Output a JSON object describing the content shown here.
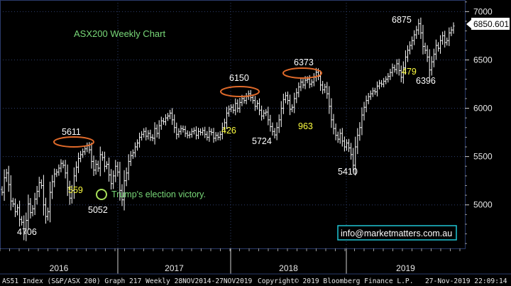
{
  "colors": {
    "background": "#000000",
    "plot_border": "#2a3a6a",
    "grid": "#2f3f6f",
    "price_bars": "#ffffff",
    "title_text": "#78d878",
    "annotation_text": "#ffff40",
    "value_text": "#ffffff",
    "highlight_ellipse": "#e06a2a",
    "event_marker": "#a8e05a",
    "link_box": "#1fc6d6",
    "last_price_box": "#ffffff"
  },
  "chart_data": {
    "type": "ohlc",
    "title": "ASX200 Weekly Chart",
    "ylim": [
      4550,
      7120
    ],
    "y_ticks": [
      5000,
      5500,
      6000,
      6500,
      7000
    ],
    "grid": true,
    "x_tick_labels": [
      "2016",
      "2017",
      "2018",
      "2019"
    ],
    "close_series_weekly_estimated": [
      5130,
      5280,
      5330,
      5210,
      5040,
      5010,
      4930,
      4970,
      4850,
      4820,
      4706,
      4840,
      5010,
      4920,
      4960,
      5060,
      5140,
      5230,
      5200,
      5000,
      4880,
      4930,
      5130,
      5240,
      5320,
      5340,
      5380,
      5430,
      5410,
      5330,
      5180,
      5070,
      5150,
      5300,
      5390,
      5480,
      5520,
      5550,
      5580,
      5611,
      5570,
      5450,
      5360,
      5420,
      5380,
      5520,
      5490,
      5400,
      5420,
      5310,
      5220,
      5300,
      5400,
      5340,
      5150,
      5052,
      5250,
      5330,
      5450,
      5510,
      5540,
      5600,
      5640,
      5700,
      5730,
      5760,
      5710,
      5740,
      5700,
      5690,
      5790,
      5740,
      5820,
      5870,
      5860,
      5900,
      5920,
      5950,
      5880,
      5800,
      5730,
      5760,
      5790,
      5780,
      5740,
      5720,
      5730,
      5760,
      5770,
      5720,
      5760,
      5750,
      5770,
      5730,
      5700,
      5760,
      5750,
      5690,
      5720,
      5700,
      5730,
      5800,
      5850,
      5950,
      5990,
      6010,
      5980,
      6050,
      6000,
      6060,
      6100,
      6080,
      6120,
      6150,
      6110,
      6080,
      6020,
      6050,
      5980,
      5920,
      5950,
      5960,
      5880,
      5810,
      5760,
      5724,
      5800,
      5880,
      6000,
      6090,
      6130,
      6080,
      5990,
      6010,
      6100,
      6160,
      6220,
      6270,
      6240,
      6290,
      6300,
      6250,
      6270,
      6320,
      6373,
      6330,
      6240,
      6190,
      6220,
      6150,
      6020,
      5880,
      5790,
      5720,
      5680,
      5740,
      5660,
      5600,
      5640,
      5590,
      5520,
      5410,
      5600,
      5720,
      5800,
      5930,
      6010,
      6080,
      6120,
      6150,
      6180,
      6170,
      6230,
      6260,
      6250,
      6280,
      6300,
      6330,
      6370,
      6420,
      6400,
      6460,
      6390,
      6320,
      6420,
      6530,
      6600,
      6650,
      6700,
      6760,
      6810,
      6875,
      6780,
      6640,
      6600,
      6530,
      6396,
      6480,
      6560,
      6650,
      6620,
      6700,
      6750,
      6680,
      6700,
      6780,
      6810,
      6850.601
    ],
    "value_labels": [
      {
        "text": "4706",
        "value": 4706
      },
      {
        "text": "5611",
        "value": 5611
      },
      {
        "text": "5052",
        "value": 5052
      },
      {
        "text": "6150",
        "value": 6150
      },
      {
        "text": "5724",
        "value": 5724
      },
      {
        "text": "6373",
        "value": 6373
      },
      {
        "text": "5410",
        "value": 5410
      },
      {
        "text": "6875",
        "value": 6875
      },
      {
        "text": "6396",
        "value": 6396
      }
    ],
    "move_labels": [
      "559",
      "426",
      "963",
      "479"
    ],
    "event_annotation": "Trump's election victory.",
    "last_price": "6850.601",
    "contact": "info@marketmatters.com.au"
  },
  "footer": {
    "left": "AS51 Index (S&P/ASX 200) Graph 217  Weekly 28NOV2014-27NOV2019",
    "center": "Copyright© 2019 Bloomberg Finance L.P.",
    "right": "27-Nov-2019 22:09:14"
  }
}
